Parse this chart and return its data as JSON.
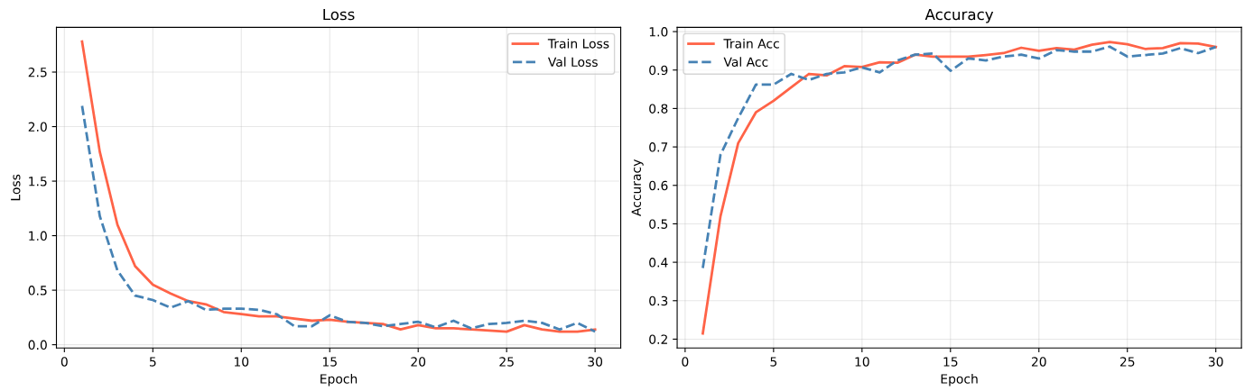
{
  "chart_data": [
    {
      "type": "line",
      "title": "Loss",
      "xlabel": "Epoch",
      "ylabel": "Loss",
      "x": [
        1,
        2,
        3,
        4,
        5,
        6,
        7,
        8,
        9,
        10,
        11,
        12,
        13,
        14,
        15,
        16,
        17,
        18,
        19,
        20,
        21,
        22,
        23,
        24,
        25,
        26,
        27,
        28,
        29,
        30
      ],
      "series": [
        {
          "name": "Train Loss",
          "color": "#ff6347",
          "line_style": "solid",
          "values": [
            2.78,
            1.77,
            1.1,
            0.72,
            0.55,
            0.47,
            0.4,
            0.37,
            0.3,
            0.28,
            0.26,
            0.26,
            0.24,
            0.22,
            0.23,
            0.21,
            0.2,
            0.19,
            0.14,
            0.18,
            0.15,
            0.15,
            0.14,
            0.13,
            0.12,
            0.18,
            0.14,
            0.12,
            0.12,
            0.14
          ]
        },
        {
          "name": "Val Loss",
          "color": "#4682b4",
          "line_style": "dashed",
          "values": [
            2.19,
            1.18,
            0.68,
            0.45,
            0.41,
            0.34,
            0.4,
            0.32,
            0.33,
            0.33,
            0.32,
            0.28,
            0.17,
            0.17,
            0.27,
            0.21,
            0.2,
            0.17,
            0.19,
            0.21,
            0.16,
            0.22,
            0.15,
            0.19,
            0.2,
            0.22,
            0.2,
            0.14,
            0.2,
            0.12
          ]
        }
      ],
      "xlim": [
        -0.45,
        31.45
      ],
      "ylim": [
        -0.03,
        2.91
      ],
      "xticks": [
        0,
        5,
        10,
        15,
        20,
        25,
        30
      ],
      "yticks": [
        {
          "value": 0,
          "label": "0.0"
        },
        0.5,
        {
          "value": 1,
          "label": "1.0"
        },
        1.5,
        {
          "value": 2,
          "label": "2.0"
        },
        2.5
      ],
      "grid": true,
      "legend": "top right",
      "marker": "none"
    },
    {
      "type": "line",
      "title": "Accuracy",
      "xlabel": "Epoch",
      "ylabel": "Accuracy",
      "x": [
        1,
        2,
        3,
        4,
        5,
        6,
        7,
        8,
        9,
        10,
        11,
        12,
        13,
        14,
        15,
        16,
        17,
        18,
        19,
        20,
        21,
        22,
        23,
        24,
        25,
        26,
        27,
        28,
        29,
        30
      ],
      "series": [
        {
          "name": "Train Acc",
          "color": "#ff6347",
          "line_style": "solid",
          "values": [
            0.215,
            0.52,
            0.71,
            0.79,
            0.82,
            0.855,
            0.89,
            0.886,
            0.91,
            0.908,
            0.92,
            0.919,
            0.94,
            0.935,
            0.935,
            0.935,
            0.939,
            0.944,
            0.958,
            0.95,
            0.957,
            0.953,
            0.966,
            0.973,
            0.967,
            0.955,
            0.957,
            0.97,
            0.969,
            0.96
          ]
        },
        {
          "name": "Val Acc",
          "color": "#4682b4",
          "line_style": "dashed",
          "values": [
            0.385,
            0.68,
            0.775,
            0.862,
            0.862,
            0.89,
            0.874,
            0.89,
            0.894,
            0.907,
            0.894,
            0.925,
            0.94,
            0.943,
            0.898,
            0.93,
            0.925,
            0.935,
            0.94,
            0.93,
            0.952,
            0.948,
            0.948,
            0.961,
            0.935,
            0.939,
            0.943,
            0.957,
            0.944,
            0.96
          ]
        }
      ],
      "xlim": [
        -0.45,
        31.45
      ],
      "ylim": [
        0.177,
        1.011
      ],
      "xticks": [
        0,
        5,
        10,
        15,
        20,
        25,
        30
      ],
      "yticks": [
        0.2,
        0.3,
        0.4,
        0.5,
        0.6,
        0.7,
        0.8,
        0.9,
        {
          "value": 1,
          "label": "1.0"
        }
      ],
      "grid": true,
      "legend": "top left",
      "marker": "none"
    }
  ]
}
